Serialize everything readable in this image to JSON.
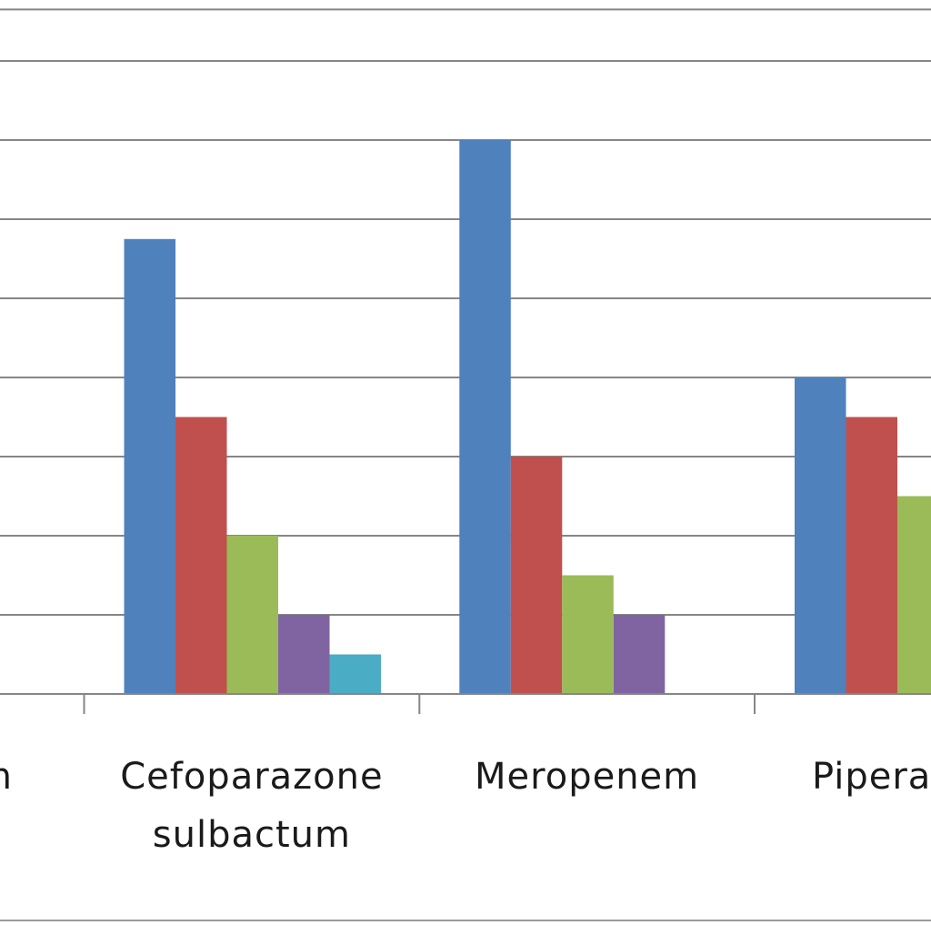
{
  "chart_data": {
    "type": "bar",
    "categories": [
      "m",
      "Cefoparazone sulbactum",
      "Meropenem",
      "Pipera"
    ],
    "category_label_lines": [
      [
        "m"
      ],
      [
        "Cefoparazone",
        "sulbactum"
      ],
      [
        "Meropenem"
      ],
      [
        "Pipera"
      ]
    ],
    "series": [
      {
        "values": [
          null,
          11.5,
          14.0,
          8.0
        ]
      },
      {
        "values": [
          null,
          7.0,
          6.0,
          7.0
        ]
      },
      {
        "values": [
          null,
          4.0,
          3.0,
          5.0
        ]
      },
      {
        "values": [
          null,
          2.0,
          2.0,
          null
        ]
      },
      {
        "values": [
          null,
          1.0,
          null,
          null
        ]
      }
    ],
    "ylim": [
      0,
      17.5
    ],
    "y_gridlines": [
      0,
      2,
      4,
      6,
      8,
      10,
      12,
      14,
      16
    ],
    "grid": true,
    "legend": "none",
    "colors": [
      "#4f81bd",
      "#c0504d",
      "#9bbb59",
      "#8064a2",
      "#4bacc6"
    ],
    "grid_color": "#868686",
    "title": "",
    "xlabel": "",
    "ylabel": ""
  }
}
